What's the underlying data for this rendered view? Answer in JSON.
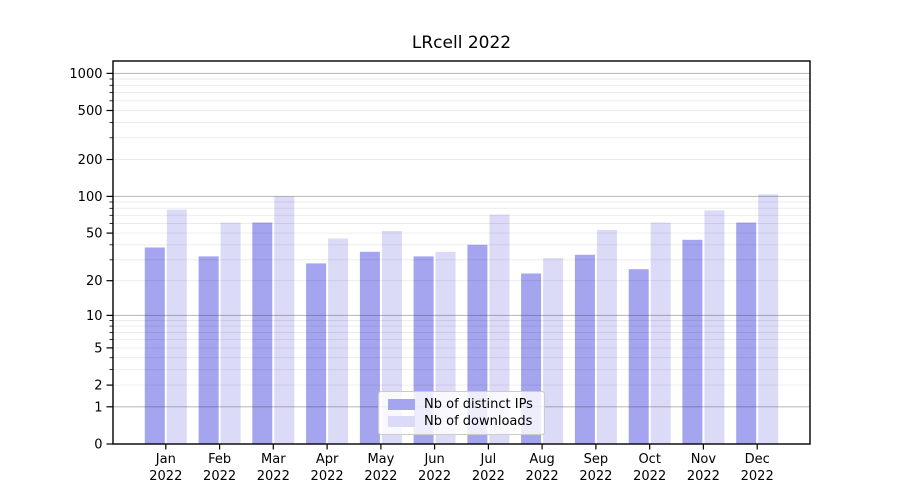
{
  "figure": {
    "background": "#ffffff",
    "text_color": "#000000"
  },
  "chart_data": {
    "type": "bar",
    "title": "LRcell 2022",
    "xlabel": "",
    "ylabel": "",
    "xticklabels": [
      "Jan\n2022",
      "Feb\n2022",
      "Mar\n2022",
      "Apr\n2022",
      "May\n2022",
      "Jun\n2022",
      "Jul\n2022",
      "Aug\n2022",
      "Sep\n2022",
      "Oct\n2022",
      "Nov\n2022",
      "Dec\n2022"
    ],
    "series": [
      {
        "name": "Nb of distinct IPs",
        "color": "#a4a4ef",
        "values": [
          38,
          32,
          61,
          28,
          35,
          32,
          40,
          23,
          33,
          25,
          44,
          61
        ]
      },
      {
        "name": "Nb of downloads",
        "color": "#dbdbf8",
        "values": [
          78,
          61,
          100,
          45,
          52,
          35,
          71,
          31,
          53,
          61,
          77,
          104
        ]
      }
    ],
    "yscale": "log1p",
    "ylim": [
      0,
      1260
    ],
    "yticks": [
      0,
      1,
      2,
      5,
      10,
      20,
      50,
      100,
      200,
      500,
      1000
    ],
    "ytick_labels": [
      "0",
      "1",
      "2",
      "5",
      "10",
      "20",
      "50",
      "100",
      "200",
      "500",
      "1000"
    ],
    "y_minor_ticks": [
      3,
      4,
      6,
      7,
      8,
      9,
      30,
      40,
      60,
      70,
      80,
      90,
      300,
      400,
      600,
      700,
      800,
      900
    ],
    "grid": true,
    "grid_major_color": "rgba(70,70,70,0.35)",
    "grid_minor_color": "rgba(0,0,0,0.08)",
    "spine_color": "#000000",
    "legend_position": "lower center"
  }
}
